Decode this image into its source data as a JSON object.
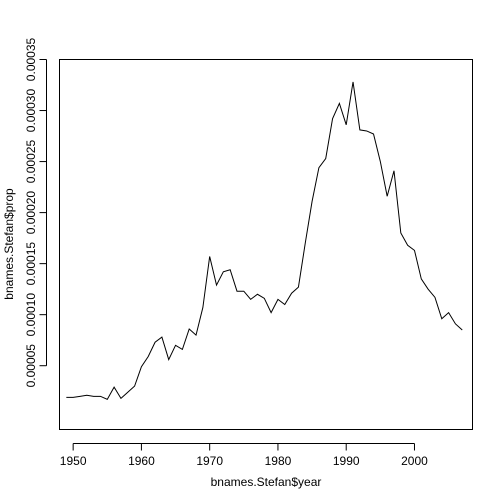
{
  "chart_data": {
    "type": "line",
    "title": "",
    "xlabel": "bnames.Stefan$year",
    "ylabel": "bnames.Stefan$prop",
    "xlim": [
      1948,
      2008.5
    ],
    "ylim": [
      -1.25e-05,
      0.00035
    ],
    "xticks": [
      1950,
      1960,
      1970,
      1980,
      1990,
      2000
    ],
    "xtick_labels": [
      "1950",
      "1960",
      "1970",
      "1980",
      "1990",
      "2000"
    ],
    "yticks": [
      5e-05,
      0.0001,
      0.00015,
      0.0002,
      0.00025,
      0.0003,
      0.00035
    ],
    "ytick_labels": [
      "0.00005",
      "0.00010",
      "0.00015",
      "0.00020",
      "0.00025",
      "0.00030",
      "0.00035"
    ],
    "grid": false,
    "series": [
      {
        "x": [
          1949,
          1950,
          1951,
          1952,
          1953,
          1954,
          1955,
          1956,
          1957,
          1958,
          1959,
          1960,
          1961,
          1962,
          1963,
          1964,
          1965,
          1966,
          1967,
          1968,
          1969,
          1970,
          1971,
          1972,
          1973,
          1974,
          1975,
          1976,
          1977,
          1978,
          1979,
          1980,
          1981,
          1982,
          1983,
          1984,
          1985,
          1986,
          1987,
          1988,
          1989,
          1990,
          1991,
          1992,
          1993,
          1994,
          1995,
          1996,
          1997,
          1998,
          1999,
          2000,
          2001,
          2002,
          2003,
          2004,
          2005,
          2006,
          2007
        ],
        "values": [
          1.9e-05,
          1.9e-05,
          2e-05,
          2.1e-05,
          2e-05,
          2e-05,
          1.7e-05,
          2.9e-05,
          1.8e-05,
          2.4e-05,
          3e-05,
          4.9e-05,
          5.9e-05,
          7.3e-05,
          7.8e-05,
          5.6e-05,
          7e-05,
          6.6e-05,
          8.6e-05,
          8e-05,
          0.000107,
          0.000157,
          0.000129,
          0.000142,
          0.000144,
          0.000123,
          0.000123,
          0.000115,
          0.00012,
          0.000116,
          0.000102,
          0.000115,
          0.00011,
          0.000121,
          0.000127,
          0.00017,
          0.000211,
          0.000244,
          0.000253,
          0.000292,
          0.000307,
          0.000286,
          0.000328,
          0.000281,
          0.00028,
          0.000277,
          0.00025,
          0.000216,
          0.000241,
          0.00018,
          0.000168,
          0.000163,
          0.000135,
          0.000125,
          0.000117,
          9.6e-05,
          0.000102,
          9.1e-05,
          8.5e-05
        ]
      }
    ]
  }
}
